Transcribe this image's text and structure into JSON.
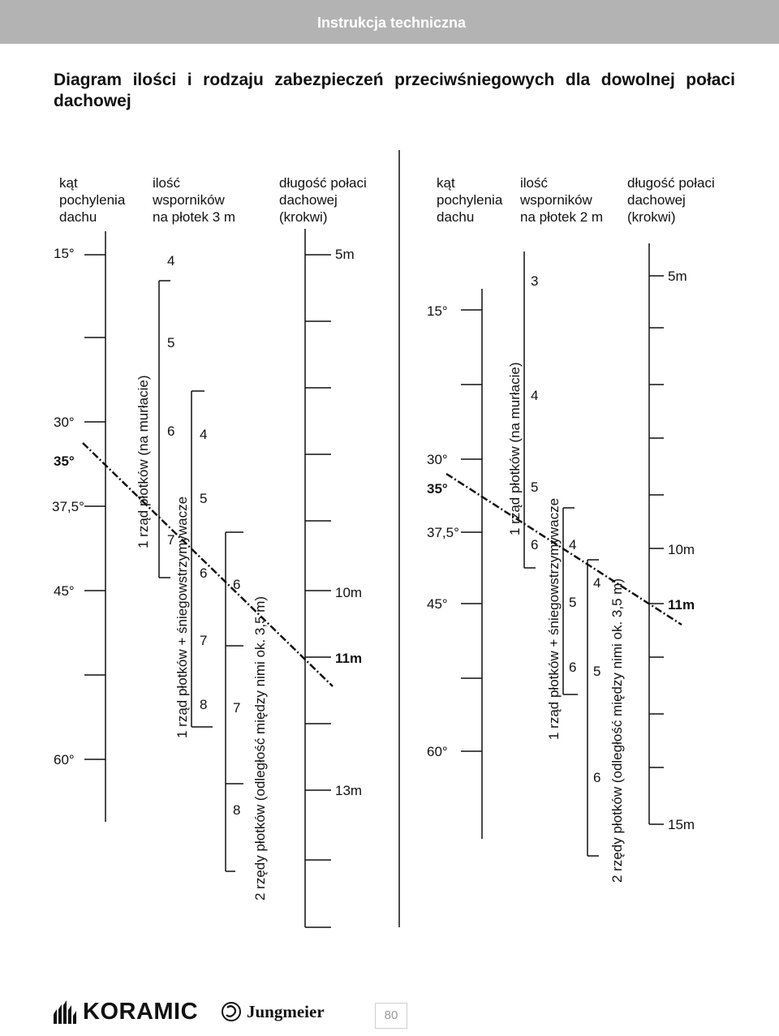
{
  "header": {
    "text": "Instrukcja techniczna"
  },
  "title": "Diagram ilości i rodzaju zabezpieczeń przeciwśniegowych dla dowolnej połaci dachowej",
  "colors": {
    "header_bg": "#b3b3b3",
    "ink": "#111111",
    "page_number": "#9a9a9a"
  },
  "left_panel": {
    "col_headers": [
      [
        "kąt",
        "pochylenia",
        "dachu"
      ],
      [
        "ilość",
        "wsporników",
        "na płotek 3 m"
      ],
      [
        "długość połaci",
        "dachowej",
        "(krokwi)"
      ]
    ],
    "angles": [
      "15°",
      "30°",
      "35°",
      "37,5°",
      "45°",
      "60°"
    ],
    "row1": [
      "4",
      "5",
      "6",
      "7"
    ],
    "row2": [
      "4",
      "5",
      "6",
      "7",
      "8"
    ],
    "row3": [
      "6",
      "7",
      "8"
    ],
    "lengths": [
      "5m",
      "10m",
      "11m",
      "13m"
    ],
    "label_row1": "1 rząd płotków (na murłacie)",
    "label_row2": "1 rząd płotków + śniegowstrzymywacze",
    "label_row3": "2 rzędy płotków (odległość między nimi ok. 3,5 m)"
  },
  "right_panel": {
    "col_headers": [
      [
        "kąt",
        "pochylenia",
        "dachu"
      ],
      [
        "ilość",
        "wsporników",
        "na płotek 2 m"
      ],
      [
        "długość połaci",
        "dachowej",
        "(krokwi)"
      ]
    ],
    "angles": [
      "15°",
      "30°",
      "35°",
      "37,5°",
      "45°",
      "60°"
    ],
    "row1": [
      "3",
      "4",
      "5",
      "6"
    ],
    "row2": [
      "4",
      "5",
      "6"
    ],
    "row3": [
      "4",
      "5",
      "6"
    ],
    "lengths": [
      "5m",
      "10m",
      "11m",
      "15m"
    ],
    "label_row1": "1 rząd płotków (na murłacie)",
    "label_row2": "1 rząd płotków + śniegowstrzymywacze",
    "label_row3": "2 rzędy płotków (odległość między nimi ok. 3,5 m)"
  },
  "footer": {
    "logo1": "KORAMIC",
    "logo2": "Jungmeier",
    "page_number": "80"
  }
}
